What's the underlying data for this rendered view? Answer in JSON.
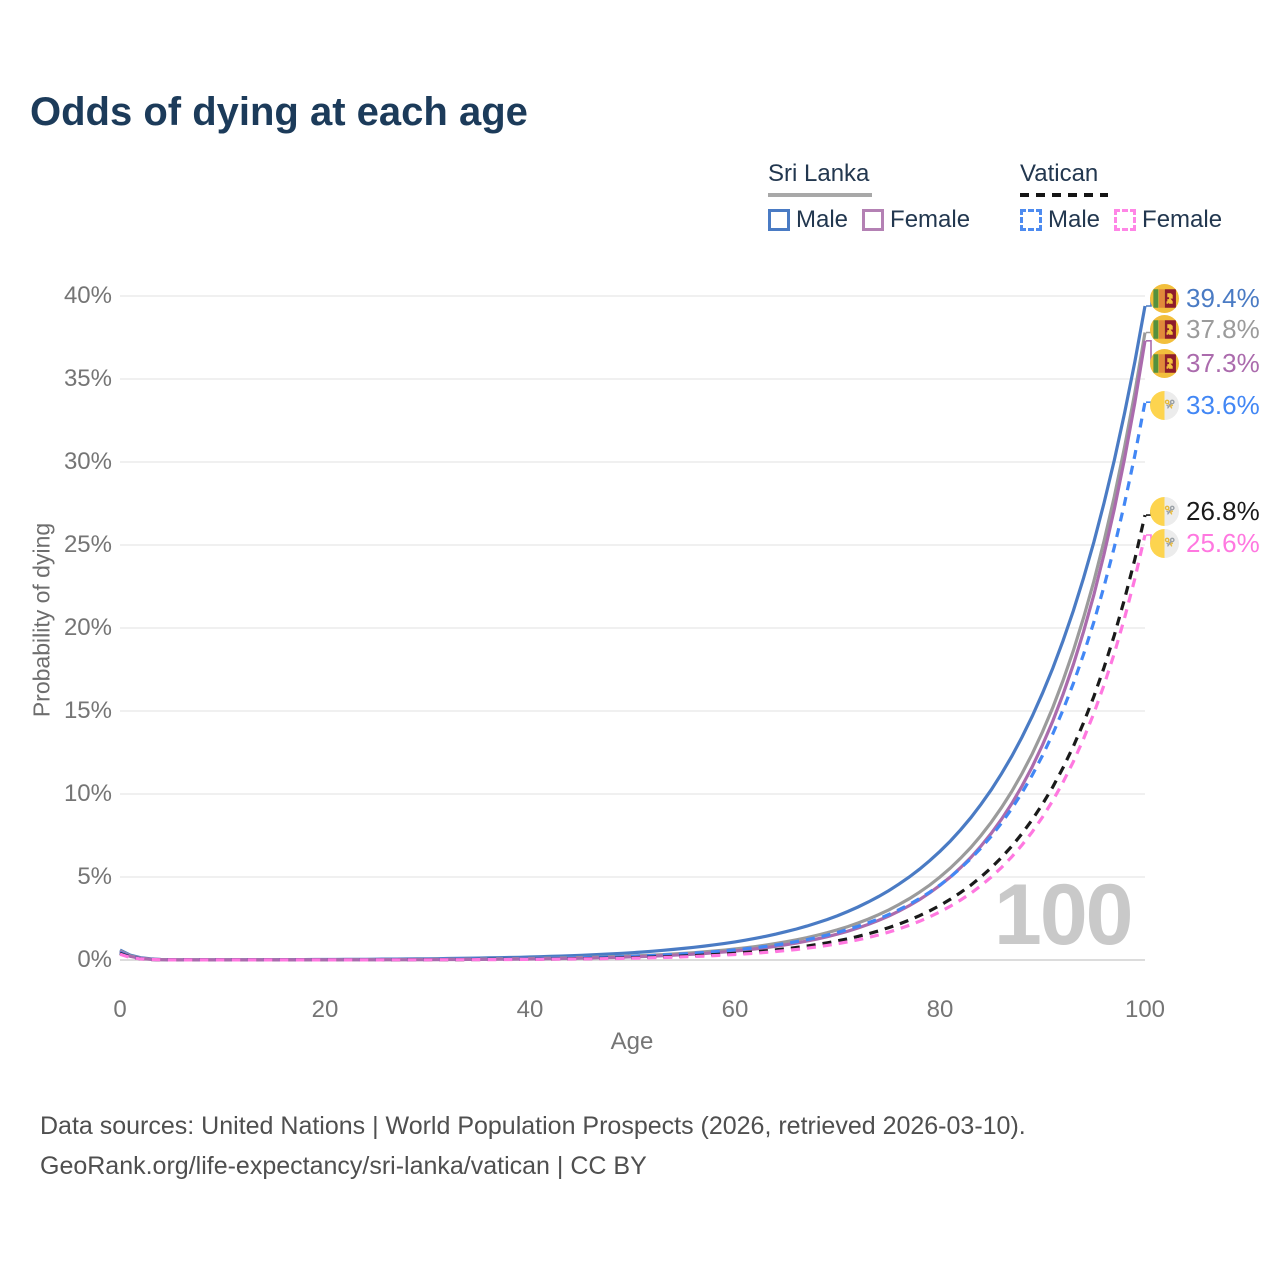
{
  "title": "Odds of dying at each age",
  "legend": {
    "groups": [
      {
        "name": "Sri Lanka",
        "line_style": "solid",
        "underline_color": "#a8a8a8",
        "items": [
          {
            "label": "Male",
            "color": "#4a7bc4"
          },
          {
            "label": "Female",
            "color": "#b481b4"
          }
        ]
      },
      {
        "name": "Vatican",
        "line_style": "dashed",
        "underline_color": "#151515",
        "items": [
          {
            "label": "Male",
            "color": "#4d8bf0"
          },
          {
            "label": "Female",
            "color": "#ff85e6"
          }
        ]
      }
    ]
  },
  "chart_data": {
    "type": "line",
    "title": "Odds of dying at each age",
    "xlabel": "Age",
    "ylabel": "Probability of dying",
    "xlim": [
      0,
      100
    ],
    "ylim": [
      0,
      40
    ],
    "grid": true,
    "legend_position": "top-right",
    "watermark": "100",
    "xticks": [
      "0",
      "20",
      "40",
      "60",
      "80",
      "100"
    ],
    "yticks": [
      "40%",
      "35%",
      "30%",
      "25%",
      "20%",
      "15%",
      "10%",
      "5%",
      "0%"
    ],
    "ytick_unit": "%",
    "x": [
      0,
      5,
      10,
      15,
      20,
      25,
      30,
      35,
      40,
      45,
      50,
      55,
      60,
      65,
      70,
      75,
      80,
      85,
      90,
      95,
      100
    ],
    "series": [
      {
        "name": "Sri Lanka — Male",
        "color": "#4a7bc4",
        "dashed": false,
        "flag": "sri-lanka",
        "end_label": "39.4%",
        "end_value": 39.4,
        "values": [
          0.6,
          0.015,
          0.015,
          0.02,
          0.03,
          0.047,
          0.074,
          0.116,
          0.18,
          0.28,
          0.44,
          0.7,
          1.09,
          1.71,
          2.67,
          4.18,
          6.55,
          10.26,
          16.07,
          25.16,
          39.4
        ]
      },
      {
        "name": "Sri Lanka — All",
        "color": "#9b9b9b",
        "dashed": false,
        "flag": "sri-lanka",
        "end_label": "37.8%",
        "end_value": 37.8,
        "values": [
          0.55,
          0.01,
          0.01,
          0.01,
          0.012,
          0.02,
          0.033,
          0.054,
          0.09,
          0.15,
          0.24,
          0.4,
          0.66,
          1.1,
          1.82,
          3.02,
          5.0,
          8.3,
          13.75,
          22.8,
          37.8
        ]
      },
      {
        "name": "Sri Lanka — Female",
        "color": "#ab6bad",
        "dashed": false,
        "flag": "sri-lanka",
        "end_label": "37.3%",
        "end_value": 37.3,
        "values": [
          0.5,
          0.008,
          0.008,
          0.008,
          0.01,
          0.014,
          0.023,
          0.039,
          0.065,
          0.11,
          0.19,
          0.32,
          0.54,
          0.92,
          1.56,
          2.65,
          4.5,
          7.63,
          12.95,
          21.98,
          37.3
        ]
      },
      {
        "name": "Vatican — Male",
        "color": "#4287f5",
        "dashed": true,
        "flag": "vatican",
        "end_label": "33.6%",
        "end_value": 33.6,
        "values": [
          0.45,
          0.007,
          0.007,
          0.008,
          0.012,
          0.018,
          0.03,
          0.05,
          0.082,
          0.135,
          0.22,
          0.37,
          0.61,
          1.0,
          1.66,
          2.74,
          4.52,
          7.46,
          12.32,
          20.35,
          33.6
        ]
      },
      {
        "name": "Vatican — All",
        "color": "#1a1a1a",
        "dashed": true,
        "flag": "vatican",
        "end_label": "26.8%",
        "end_value": 26.8,
        "values": [
          0.4,
          0.006,
          0.006,
          0.007,
          0.009,
          0.012,
          0.018,
          0.03,
          0.05,
          0.084,
          0.14,
          0.24,
          0.4,
          0.68,
          1.15,
          1.95,
          3.29,
          5.56,
          9.39,
          15.86,
          26.8
        ]
      },
      {
        "name": "Vatican — Female",
        "color": "#ff78e0",
        "dashed": true,
        "flag": "vatican",
        "end_label": "25.6%",
        "end_value": 25.6,
        "values": [
          0.35,
          0.005,
          0.005,
          0.006,
          0.007,
          0.009,
          0.013,
          0.022,
          0.037,
          0.064,
          0.11,
          0.19,
          0.33,
          0.57,
          0.98,
          1.68,
          2.9,
          5.0,
          8.61,
          14.85,
          25.6
        ]
      }
    ]
  },
  "footer": {
    "line1": "Data sources: United Nations | World Population Prospects (2026, retrieved 2026-03-10).",
    "line2": "GeoRank.org/life-expectancy/sri-lanka/vatican | CC BY"
  }
}
